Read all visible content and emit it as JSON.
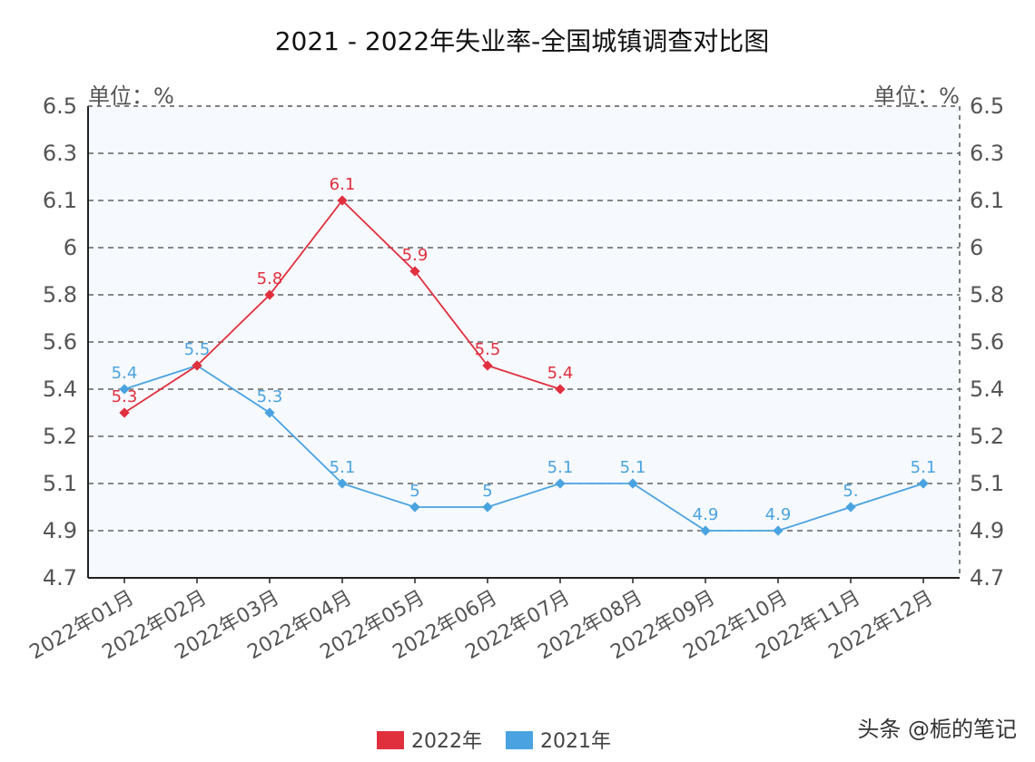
{
  "chart_data": {
    "type": "line",
    "title": "2021 - 2022年失业率-全国城镇调查对比图",
    "y_unit_left": "单位：%",
    "y_unit_right": "单位：%",
    "ylim": [
      4.7,
      6.5
    ],
    "y_ticks": [
      "6.5",
      "6.3",
      "6.1",
      "6",
      "5.8",
      "5.6",
      "5.4",
      "5.2",
      "5.1",
      "4.9",
      "4.7"
    ],
    "categories": [
      "2022年01月",
      "2022年02月",
      "2022年03月",
      "2022年04月",
      "2022年05月",
      "2022年06月",
      "2022年07月",
      "2022年08月",
      "2022年09月",
      "2022年10月",
      "2022年11月",
      "2022年12月"
    ],
    "series": [
      {
        "name": "2022年",
        "color": "#e0303e",
        "values": [
          5.3,
          5.5,
          5.8,
          6.1,
          5.9,
          5.5,
          5.4,
          null,
          null,
          null,
          null,
          null
        ],
        "labels": [
          "5.3",
          "5.5",
          "5.8",
          "6.1",
          "5.9",
          "5.5",
          "5.4",
          null,
          null,
          null,
          null,
          null
        ]
      },
      {
        "name": "2021年",
        "color": "#4aa3e0",
        "values": [
          5.4,
          5.5,
          5.3,
          5.1,
          5,
          5,
          5.1,
          5.1,
          4.9,
          4.9,
          5,
          5.1
        ],
        "labels": [
          "5.4",
          "5.5",
          "5.3",
          "5.1",
          "5",
          "5",
          "5.1",
          "5.1",
          "4.9",
          "4.9",
          "5.",
          "5.1"
        ]
      }
    ],
    "grid": true,
    "legend_position": "bottom-center"
  },
  "watermark": "头条 @栀的笔记"
}
